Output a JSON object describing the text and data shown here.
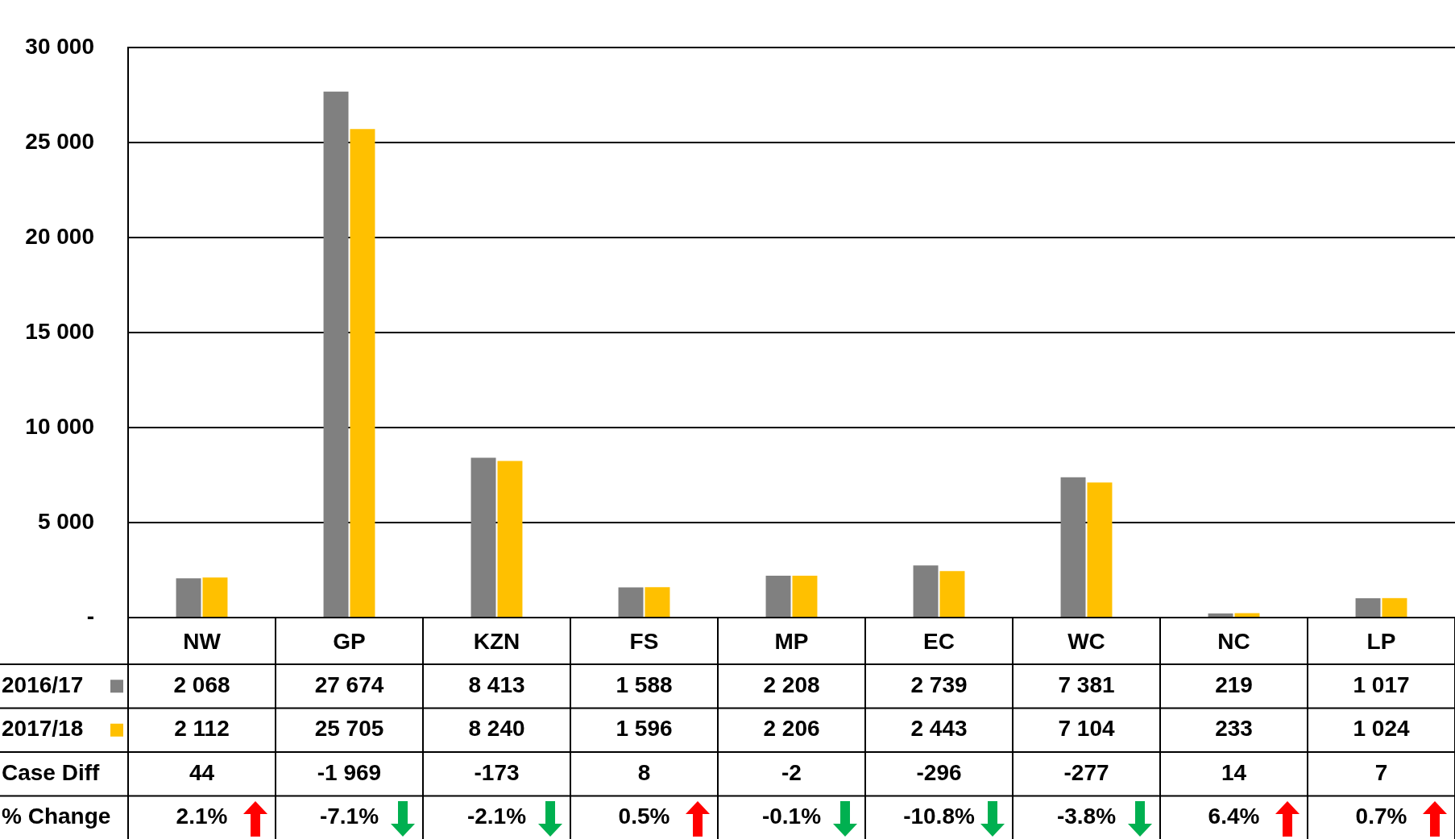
{
  "chart_data": {
    "type": "bar",
    "categories": [
      "NW",
      "GP",
      "KZN",
      "FS",
      "MP",
      "EC",
      "WC",
      "NC",
      "LP"
    ],
    "series": [
      {
        "name": "2016/17",
        "color": "#808080",
        "values": [
          2068,
          27674,
          8413,
          1588,
          2208,
          2739,
          7381,
          219,
          1017
        ]
      },
      {
        "name": "2017/18",
        "color": "#ffc000",
        "values": [
          2112,
          25705,
          8240,
          1596,
          2206,
          2443,
          7104,
          233,
          1024
        ]
      }
    ],
    "ylim": [
      0,
      30000
    ],
    "yticks": [
      {
        "value": 0,
        "label": "-"
      },
      {
        "value": 5000,
        "label": "5 000"
      },
      {
        "value": 10000,
        "label": "10 000"
      },
      {
        "value": 15000,
        "label": "15 000"
      },
      {
        "value": 20000,
        "label": "20 000"
      },
      {
        "value": 25000,
        "label": "25 000"
      },
      {
        "value": 30000,
        "label": "30 000"
      }
    ],
    "grid": "y",
    "data_labels": true,
    "legend": "bottom left",
    "annotations": [
      "Case Diff",
      "44",
      "-1 969",
      "-173",
      "8",
      "-2",
      "-296",
      "-277",
      "14",
      "7",
      "% Change",
      "2.1%",
      "-7.1%",
      "-2.1%",
      "0.5%",
      "-0.1%",
      "-10.8%",
      "-3.8%",
      "6.4%",
      "0.7%"
    ]
  }
}
